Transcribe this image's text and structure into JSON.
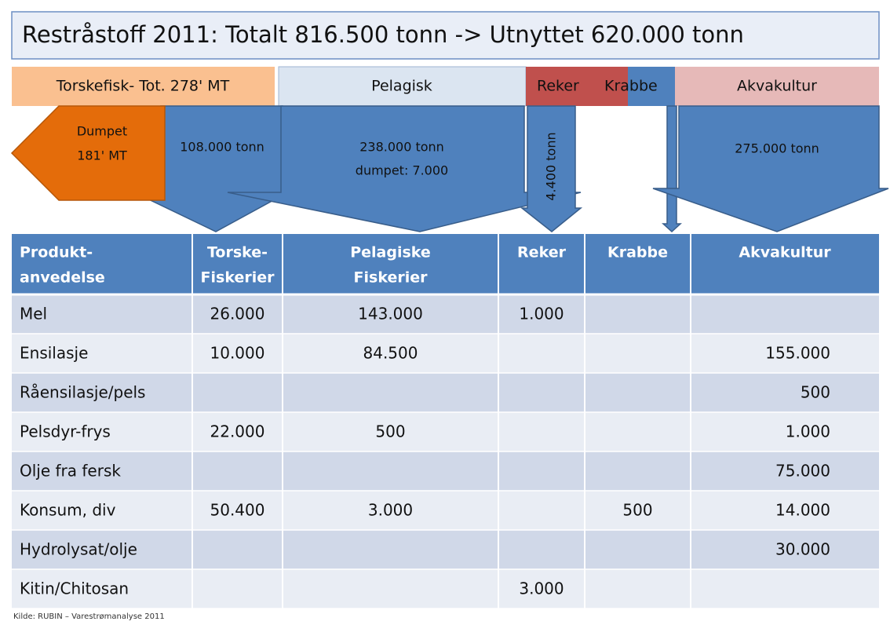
{
  "title": "Restråstoff 2011: Totalt 816.500 tonn -> Utnyttet 620.000 tonn",
  "categories": [
    "Torskefisk- Tot. 278' MT",
    "Pelagisk",
    "Reker",
    "Krabbe",
    "Akvakultur"
  ],
  "arrows": {
    "dumped": [
      "Dumpet",
      "181' MT"
    ],
    "torsk": [
      "108.000 tonn"
    ],
    "pelagisk": [
      "238.000 tonn",
      "dumpet: 7.000"
    ],
    "reker": [
      "4.400 tonn"
    ],
    "akvakultur": [
      "275.000 tonn"
    ]
  },
  "table": {
    "header": [
      [
        "Produkt-",
        "anvedelse"
      ],
      [
        "Torske-",
        "Fiskerier"
      ],
      [
        "Pelagiske",
        "Fiskerier"
      ],
      [
        "Reker"
      ],
      [
        "Krabbe"
      ],
      [
        "Akvakultur"
      ]
    ],
    "rows": [
      [
        "Mel",
        "26.000",
        "143.000",
        "1.000",
        null,
        null
      ],
      [
        "Ensilasje",
        "10.000",
        "84.500",
        null,
        null,
        "155.000"
      ],
      [
        "Råensilasje/pels",
        null,
        null,
        null,
        null,
        "500"
      ],
      [
        "Pelsdyr-frys",
        "22.000",
        "500",
        null,
        null,
        "1.000"
      ],
      [
        "Olje fra fersk",
        null,
        null,
        null,
        null,
        "75.000"
      ],
      [
        "Konsum, div",
        "50.400",
        "3.000",
        null,
        "500",
        "14.000"
      ],
      [
        "Hydrolysat/olje",
        null,
        null,
        null,
        null,
        "30.000"
      ],
      [
        "Kitin/Chitosan",
        null,
        null,
        "3.000",
        null,
        null
      ]
    ]
  },
  "source": "Kilde: RUBIN – Varestrømanalyse 2011"
}
